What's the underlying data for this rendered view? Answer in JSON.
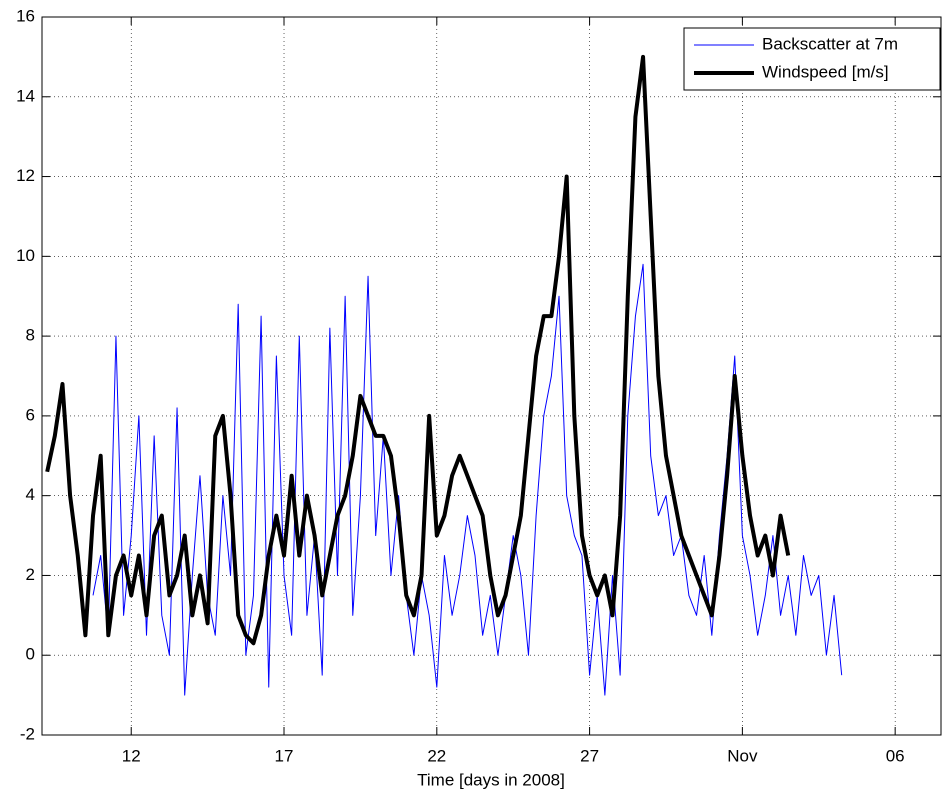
{
  "chart_data": {
    "type": "line",
    "xlabel": "Time [days in 2008]",
    "x": [
      283.25,
      283.5,
      283.75,
      284,
      284.25,
      284.5,
      284.75,
      285,
      285.25,
      285.5,
      285.75,
      286,
      286.25,
      286.5,
      286.75,
      287,
      287.25,
      287.5,
      287.75,
      288,
      288.25,
      288.5,
      288.75,
      289,
      289.25,
      289.5,
      289.75,
      290,
      290.25,
      290.5,
      290.75,
      291,
      291.25,
      291.5,
      291.75,
      292,
      292.25,
      292.5,
      292.75,
      293,
      293.25,
      293.5,
      293.75,
      294,
      294.25,
      294.5,
      294.75,
      295,
      295.25,
      295.5,
      295.75,
      296,
      296.25,
      296.5,
      296.75,
      297,
      297.25,
      297.5,
      297.75,
      298,
      298.25,
      298.5,
      298.75,
      299,
      299.25,
      299.5,
      299.75,
      300,
      300.25,
      300.5,
      300.75,
      301,
      301.25,
      301.5,
      301.75,
      302,
      302.25,
      302.5,
      302.75,
      303,
      303.25,
      303.5,
      303.75,
      304,
      304.25,
      304.5,
      304.75,
      305,
      305.25,
      305.5,
      305.75,
      306,
      306.25,
      306.5,
      306.75,
      307,
      307.25,
      307.5,
      307.75,
      308,
      308.25,
      308.5,
      308.75,
      309,
      309.25
    ],
    "series": [
      {
        "name": "Backscatter at 7m",
        "color": "#0000ff",
        "line_width": 1,
        "values": [
          null,
          null,
          null,
          null,
          null,
          null,
          1.5,
          2.5,
          0.5,
          8.0,
          1.0,
          3.0,
          6.0,
          0.5,
          5.5,
          1.0,
          0.0,
          6.2,
          -1.0,
          2.0,
          4.5,
          1.5,
          0.5,
          4.0,
          2.0,
          8.8,
          0.0,
          1.5,
          8.5,
          -0.8,
          7.5,
          2.0,
          0.5,
          8.0,
          1.0,
          3.0,
          -0.5,
          8.2,
          2.0,
          9.0,
          1.0,
          4.0,
          9.5,
          3.0,
          5.5,
          2.0,
          4.0,
          1.5,
          0.0,
          2.0,
          1.0,
          -0.8,
          2.5,
          1.0,
          2.0,
          3.5,
          2.5,
          0.5,
          1.5,
          0.0,
          1.5,
          3.0,
          2.0,
          0.0,
          3.5,
          6.0,
          7.0,
          9.0,
          4.0,
          3.0,
          2.5,
          -0.5,
          1.5,
          -1.0,
          2.0,
          -0.5,
          6.0,
          8.5,
          9.8,
          5.0,
          3.5,
          4.0,
          2.5,
          3.0,
          1.5,
          1.0,
          2.5,
          0.5,
          3.0,
          5.0,
          7.5,
          3.0,
          2.0,
          0.5,
          1.5,
          3.0,
          1.0,
          2.0,
          0.5,
          2.5,
          1.5,
          2.0,
          0.0,
          1.5,
          -0.5
        ]
      },
      {
        "name": "Windspeed [m/s]",
        "color": "#000000",
        "line_width": 4,
        "values": [
          4.6,
          5.5,
          6.8,
          4.0,
          2.5,
          0.5,
          3.5,
          5.0,
          0.5,
          2.0,
          2.5,
          1.5,
          2.5,
          1.0,
          3.0,
          3.5,
          1.5,
          2.0,
          3.0,
          1.0,
          2.0,
          0.8,
          5.5,
          6.0,
          4.0,
          1.0,
          0.5,
          0.3,
          1.0,
          2.5,
          3.5,
          2.5,
          4.5,
          2.5,
          4.0,
          3.0,
          1.5,
          2.5,
          3.5,
          4.0,
          5.0,
          6.5,
          6.0,
          5.5,
          5.5,
          5.0,
          3.5,
          1.5,
          1.0,
          2.0,
          6.0,
          3.0,
          3.5,
          4.5,
          5.0,
          4.5,
          4.0,
          3.5,
          2.0,
          1.0,
          1.5,
          2.5,
          3.5,
          5.5,
          7.5,
          8.5,
          8.5,
          10.0,
          12.0,
          6.0,
          3.0,
          2.0,
          1.5,
          2.0,
          1.0,
          3.5,
          9.0,
          13.5,
          15.0,
          11.0,
          7.0,
          5.0,
          4.0,
          3.0,
          2.5,
          2.0,
          1.5,
          1.0,
          2.5,
          4.5,
          7.0,
          5.0,
          3.5,
          2.5,
          3.0,
          2.0,
          3.5,
          2.5,
          null,
          null,
          null,
          null,
          null,
          null,
          null
        ]
      }
    ],
    "xlim": [
      283.08,
      312.5
    ],
    "xticks": [
      {
        "value": 286,
        "label": "12"
      },
      {
        "value": 291,
        "label": "17"
      },
      {
        "value": 296,
        "label": "22"
      },
      {
        "value": 301,
        "label": "27"
      },
      {
        "value": 306,
        "label": "Nov"
      },
      {
        "value": 311,
        "label": "06"
      }
    ],
    "ylim": [
      -2,
      16
    ],
    "yticks": [
      -2,
      0,
      2,
      4,
      6,
      8,
      10,
      12,
      14,
      16
    ],
    "grid": true,
    "legend": "upper right"
  }
}
